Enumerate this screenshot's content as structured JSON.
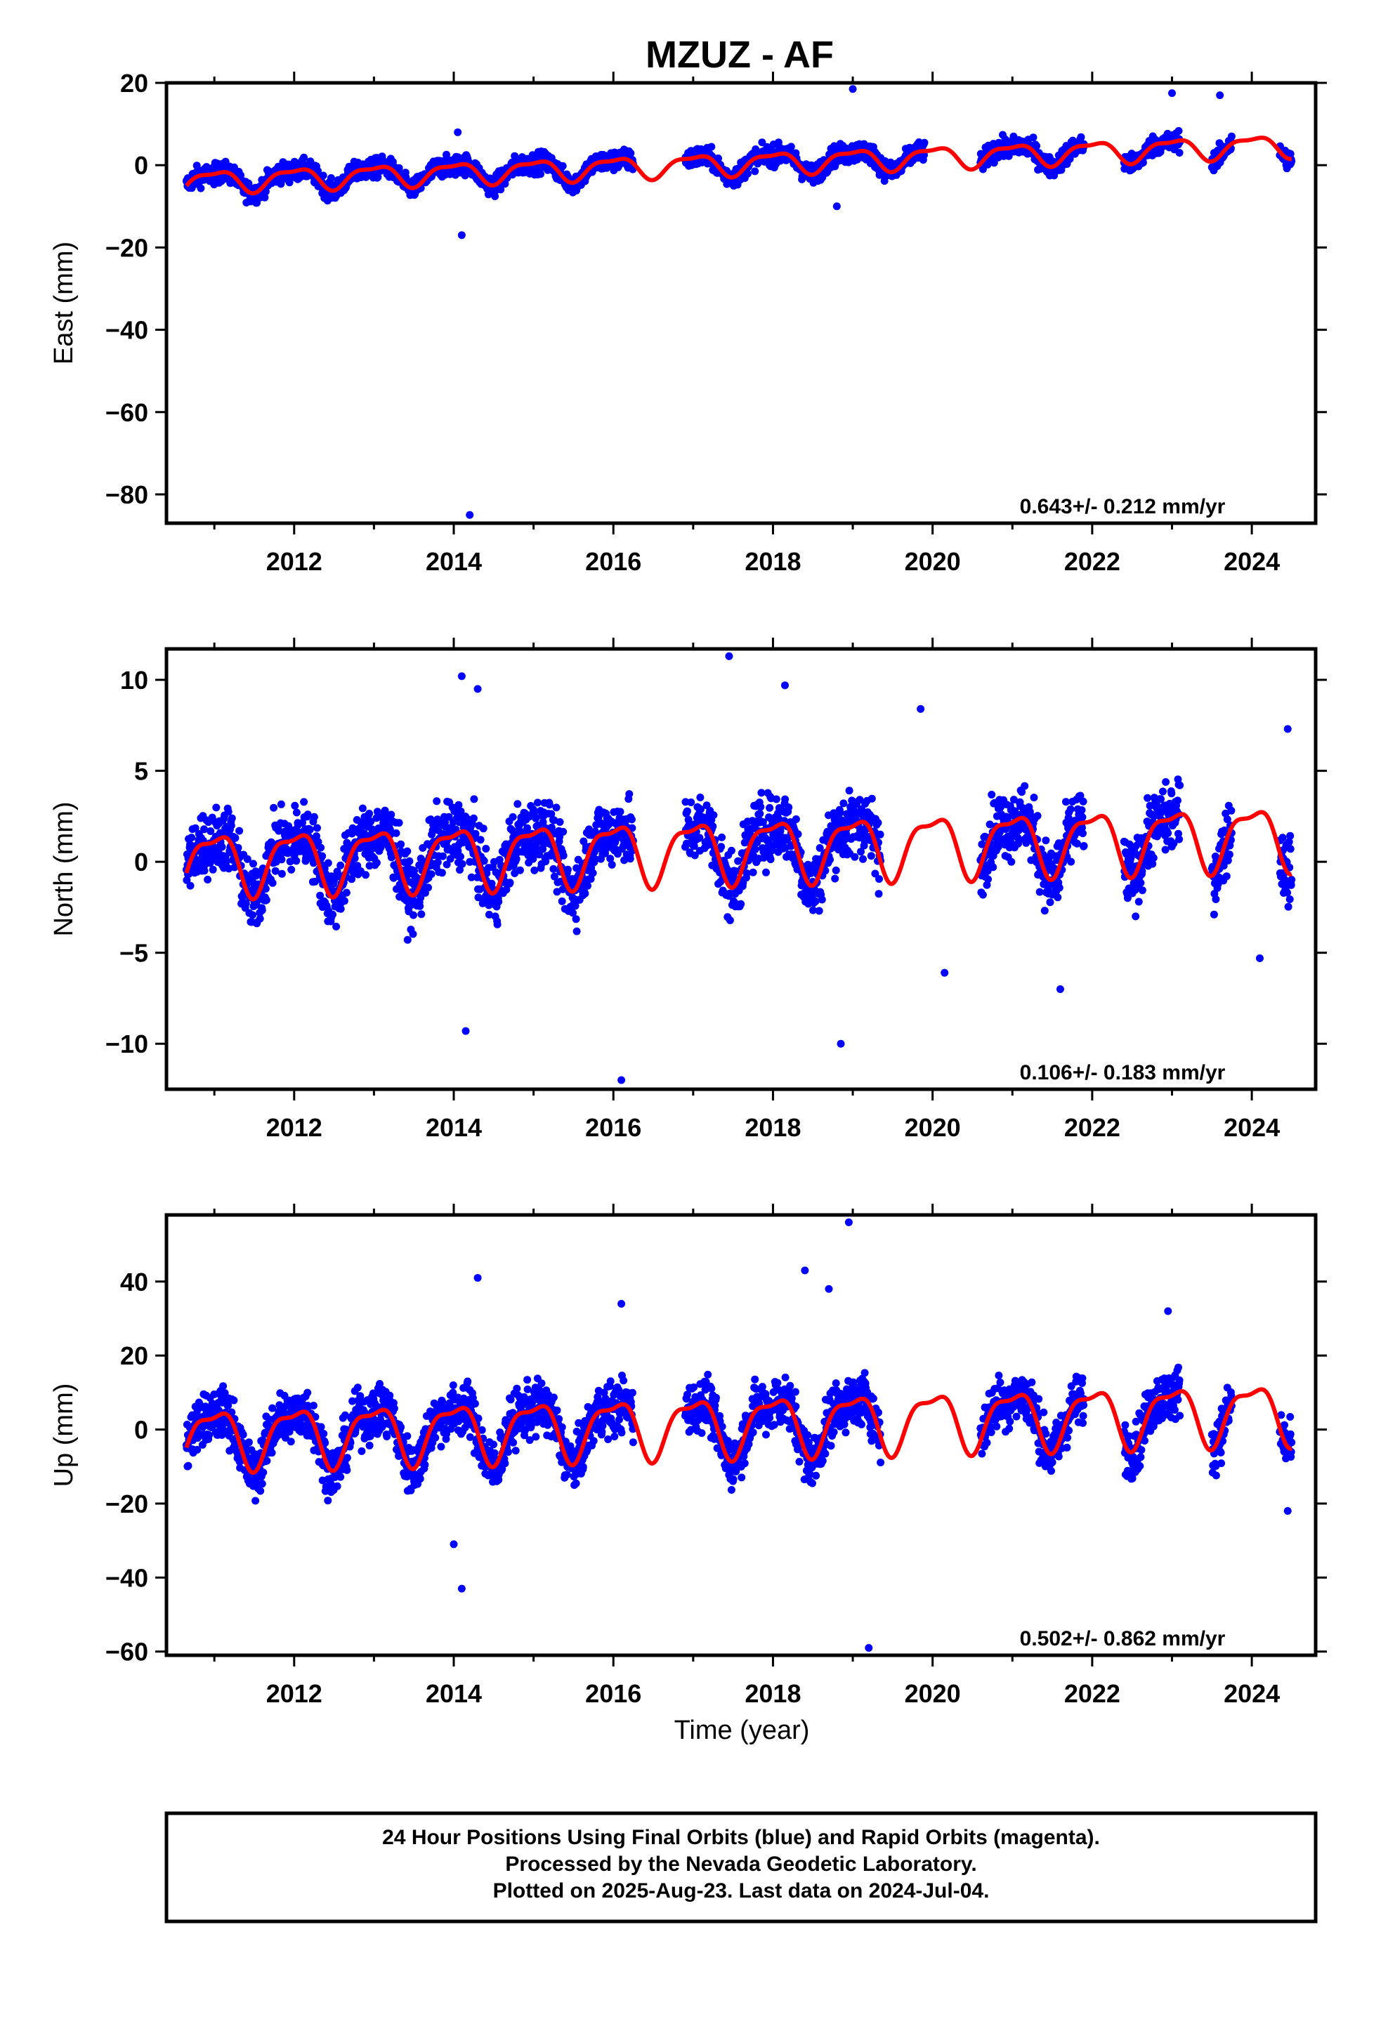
{
  "title": "MZUZ - AF",
  "xlabel": "Time (year)",
  "footer": {
    "line1": "24 Hour Positions Using Final Orbits (blue) and Rapid Orbits (magenta).",
    "line2": "Processed by the Nevada Geodetic Laboratory.",
    "line3": "Plotted on 2025-Aug-23. Last data on 2024-Jul-04."
  },
  "colors": {
    "points": "#0000ff",
    "fit": "#ff0000",
    "axis": "#000000"
  },
  "chart_data": [
    {
      "type": "scatter",
      "ylabel": "East (mm)",
      "rate": "0.643+/- 0.212 mm/yr",
      "xlim": [
        2010.4,
        2024.8
      ],
      "ylim": [
        -87,
        20
      ],
      "xticks": [
        2012,
        2014,
        2016,
        2018,
        2020,
        2022,
        2024
      ],
      "yticks": [
        20,
        0,
        -20,
        -40,
        -60,
        -80
      ],
      "tick_labels_y": [
        "20",
        "0",
        "−20",
        "−40",
        "−60",
        "−80"
      ],
      "data_segments": [
        [
          2010.65,
          2016.25
        ],
        [
          2016.9,
          2019.9
        ],
        [
          2020.6,
          2021.9
        ],
        [
          2022.4,
          2023.1
        ],
        [
          2023.5,
          2023.75
        ],
        [
          2024.35,
          2024.5
        ]
      ],
      "trend_at_2010_7": -4.0,
      "annual_amplitude": 2.5,
      "scatter": 1.7,
      "outliers": [
        {
          "x": 2014.2,
          "y": -85
        },
        {
          "x": 2014.1,
          "y": -17
        },
        {
          "x": 2019.0,
          "y": 18.5
        },
        {
          "x": 2023.0,
          "y": 17.5
        },
        {
          "x": 2023.6,
          "y": 17
        },
        {
          "x": 2018.8,
          "y": -10
        },
        {
          "x": 2014.05,
          "y": 8
        }
      ],
      "grid": false,
      "legend": "none"
    },
    {
      "type": "scatter",
      "ylabel": "North (mm)",
      "rate": "0.106+/- 0.183 mm/yr",
      "xlim": [
        2010.4,
        2024.8
      ],
      "ylim": [
        -12.5,
        11.7
      ],
      "xticks": [
        2012,
        2014,
        2016,
        2018,
        2020,
        2022,
        2024
      ],
      "yticks": [
        10,
        5,
        0,
        -5,
        -10
      ],
      "tick_labels_y": [
        "10",
        "5",
        "0",
        "−5",
        "−10"
      ],
      "data_segments": [
        [
          2010.65,
          2016.25
        ],
        [
          2016.9,
          2019.35
        ],
        [
          2020.6,
          2021.9
        ],
        [
          2022.4,
          2023.1
        ],
        [
          2023.5,
          2023.75
        ],
        [
          2024.35,
          2024.5
        ]
      ],
      "trend_at_2010_7": 0.0,
      "annual_amplitude": 1.6,
      "scatter": 1.3,
      "outliers": [
        {
          "x": 2014.1,
          "y": 10.2
        },
        {
          "x": 2014.3,
          "y": 9.5
        },
        {
          "x": 2017.45,
          "y": 11.3
        },
        {
          "x": 2018.15,
          "y": 9.7
        },
        {
          "x": 2019.85,
          "y": 8.4
        },
        {
          "x": 2016.1,
          "y": -12
        },
        {
          "x": 2018.85,
          "y": -10
        },
        {
          "x": 2014.15,
          "y": -9.3
        },
        {
          "x": 2024.45,
          "y": 7.3
        },
        {
          "x": 2024.1,
          "y": -5.3
        },
        {
          "x": 2020.15,
          "y": -6.1
        },
        {
          "x": 2021.6,
          "y": -7
        }
      ],
      "grid": false,
      "legend": "none"
    },
    {
      "type": "scatter",
      "ylabel": "Up (mm)",
      "rate": "0.502+/- 0.862 mm/yr",
      "xlim": [
        2010.4,
        2024.8
      ],
      "ylim": [
        -61,
        58
      ],
      "xticks": [
        2012,
        2014,
        2016,
        2018,
        2020,
        2022,
        2024
      ],
      "yticks": [
        40,
        20,
        0,
        -20,
        -40,
        -60
      ],
      "tick_labels_y": [
        "40",
        "20",
        "0",
        "−20",
        "−40",
        "−60"
      ],
      "data_segments": [
        [
          2010.65,
          2016.25
        ],
        [
          2016.9,
          2019.35
        ],
        [
          2020.6,
          2021.9
        ],
        [
          2022.4,
          2023.1
        ],
        [
          2023.5,
          2023.75
        ],
        [
          2024.35,
          2024.5
        ]
      ],
      "trend_at_2010_7": -2.0,
      "annual_amplitude": 7.5,
      "scatter": 5.0,
      "outliers": [
        {
          "x": 2018.95,
          "y": 56
        },
        {
          "x": 2018.4,
          "y": 43
        },
        {
          "x": 2014.3,
          "y": 41
        },
        {
          "x": 2014.1,
          "y": -43
        },
        {
          "x": 2019.2,
          "y": -59
        },
        {
          "x": 2018.7,
          "y": 38
        },
        {
          "x": 2016.1,
          "y": 34
        },
        {
          "x": 2022.95,
          "y": 32
        },
        {
          "x": 2014.0,
          "y": -31
        },
        {
          "x": 2024.45,
          "y": -22
        }
      ],
      "grid": false,
      "legend": "none"
    }
  ]
}
